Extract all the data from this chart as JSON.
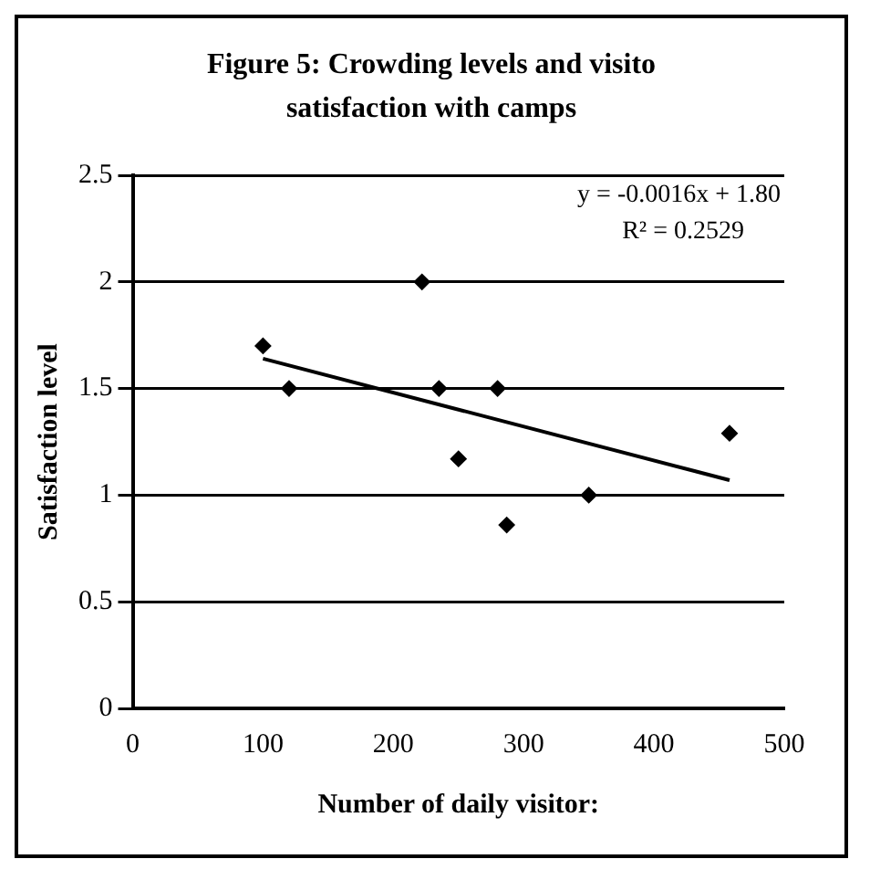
{
  "chart_data": {
    "type": "scatter",
    "title": "Figure 5: Crowding levels and visito satisfaction with camps",
    "xlabel": "Number of daily visitor:",
    "ylabel": "Satisfaction level",
    "series": [
      {
        "marker": "diamond",
        "color": "#000000",
        "x": [
          100,
          120,
          222,
          235,
          250,
          280,
          287,
          350,
          458
        ],
        "values": [
          1.7,
          1.5,
          2.0,
          1.5,
          1.17,
          1.5,
          0.86,
          1.0,
          1.29
        ]
      },
      {
        "type": "line",
        "color": "#000000",
        "x": [
          100,
          458
        ],
        "values": [
          1.64,
          1.07
        ]
      }
    ],
    "xlim": [
      0,
      500
    ],
    "xticks": [
      0,
      100,
      200,
      300,
      400,
      500
    ],
    "ylim": [
      0,
      2.5
    ],
    "yticks": [
      0,
      0.5,
      1,
      1.5,
      2,
      2.5
    ],
    "grid": "y",
    "annotations": [
      "y = -0.0016x + 1.80",
      "R² = 0.2529"
    ]
  }
}
